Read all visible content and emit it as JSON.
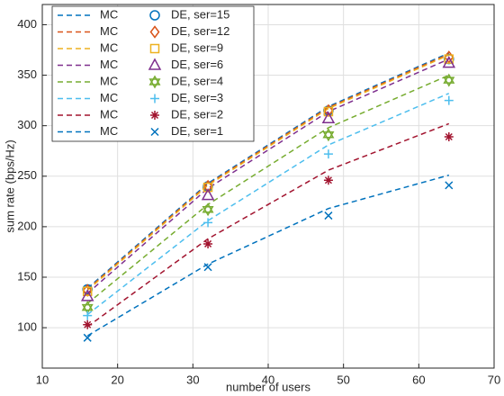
{
  "chart_data": {
    "type": "line",
    "x_label": "number of users",
    "y_label": "sum rate (bps/Hz)",
    "x": [
      16,
      32,
      48,
      64
    ],
    "xlim": [
      10,
      70
    ],
    "xticks": [
      10,
      20,
      30,
      40,
      50,
      60,
      70
    ],
    "ylim": [
      60,
      420
    ],
    "yticks": [
      100,
      150,
      200,
      250,
      300,
      350,
      400
    ],
    "grid": true,
    "legend_position": "upper-left",
    "series": [
      {
        "name": "MC",
        "color": "#0072BD",
        "style": "dashed",
        "values": [
          139,
          243,
          319,
          372
        ]
      },
      {
        "name": "MC",
        "color": "#D95319",
        "style": "dashed",
        "values": [
          138,
          242,
          318,
          371
        ]
      },
      {
        "name": "MC",
        "color": "#EDB120",
        "style": "dashed",
        "values": [
          137,
          241,
          317,
          370
        ]
      },
      {
        "name": "MC",
        "color": "#7E2F8E",
        "style": "dashed",
        "values": [
          134,
          238,
          314,
          366
        ]
      },
      {
        "name": "MC",
        "color": "#77AC30",
        "style": "dashed",
        "values": [
          124,
          222,
          298,
          350
        ]
      },
      {
        "name": "MC",
        "color": "#4DBEEE",
        "style": "dashed",
        "values": [
          113,
          206,
          281,
          332
        ]
      },
      {
        "name": "MC",
        "color": "#A2142F",
        "style": "dashed",
        "values": [
          101,
          188,
          256,
          302
        ]
      },
      {
        "name": "MC",
        "color": "#0072BD",
        "style": "dashed",
        "values": [
          92,
          163,
          218,
          251
        ]
      },
      {
        "name": "DE, ser=15",
        "color": "#0072BD",
        "marker": "circle",
        "values": [
          138,
          240,
          315,
          366
        ]
      },
      {
        "name": "DE, ser=12",
        "color": "#D95319",
        "marker": "diamond",
        "values": [
          137,
          240,
          315,
          368
        ]
      },
      {
        "name": "DE, ser=9",
        "color": "#EDB120",
        "marker": "square",
        "values": [
          136,
          239,
          314,
          366
        ]
      },
      {
        "name": "DE, ser=6",
        "color": "#7E2F8E",
        "marker": "triangle",
        "values": [
          131,
          231,
          307,
          362
        ]
      },
      {
        "name": "DE, ser=4",
        "color": "#77AC30",
        "marker": "hexagram",
        "values": [
          120,
          217,
          291,
          345
        ]
      },
      {
        "name": "DE, ser=3",
        "color": "#4DBEEE",
        "marker": "plus",
        "values": [
          112,
          204,
          272,
          325
        ]
      },
      {
        "name": "DE, ser=2",
        "color": "#A2142F",
        "marker": "asterisk",
        "values": [
          103,
          183,
          246,
          289
        ]
      },
      {
        "name": "DE, ser=1",
        "color": "#0072BD",
        "marker": "x",
        "values": [
          90,
          160,
          211,
          241
        ]
      }
    ]
  }
}
